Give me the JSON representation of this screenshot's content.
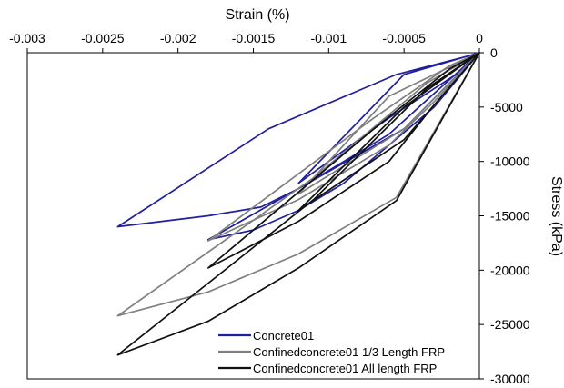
{
  "chart_data": {
    "type": "line",
    "title": "",
    "xlabel": "Strain (%)",
    "ylabel": "Stress (kPa)",
    "xlim": [
      -0.003,
      0
    ],
    "ylim": [
      -30000,
      0
    ],
    "x_ticks": [
      {
        "value": -0.003,
        "label": "-0.003"
      },
      {
        "value": -0.0025,
        "label": "-0.0025"
      },
      {
        "value": -0.002,
        "label": "-0.002"
      },
      {
        "value": -0.0015,
        "label": "-0.0015"
      },
      {
        "value": -0.001,
        "label": "-0.001"
      },
      {
        "value": -0.0005,
        "label": "-0.0005"
      },
      {
        "value": 0,
        "label": "0"
      }
    ],
    "y_ticks": [
      {
        "value": 0,
        "label": "0"
      },
      {
        "value": -5000,
        "label": "-5000"
      },
      {
        "value": -10000,
        "label": "-10000"
      },
      {
        "value": -15000,
        "label": "-15000"
      },
      {
        "value": -20000,
        "label": "-20000"
      },
      {
        "value": -25000,
        "label": "-25000"
      },
      {
        "value": -30000,
        "label": "-30000"
      }
    ],
    "x_axis_position": "top",
    "y_axis_position": "right",
    "grid": false,
    "legend_position": "bottom-right",
    "series": [
      {
        "name": "Concrete01",
        "color": "#1f1f9f",
        "x": [
          0,
          -0.0002,
          -0.0004,
          -0.0006,
          -0.0009,
          -0.0012,
          -0.00145,
          -0.0018,
          -0.0021,
          -0.0024,
          -0.0014,
          -0.00055,
          -0.0001,
          0,
          -0.0003,
          -0.0006,
          -0.0009,
          -0.0012,
          -0.0015,
          -0.0018,
          -0.0005,
          -5e-05,
          0,
          -0.0001,
          -0.0006,
          -0.0009,
          -0.0012,
          -0.0005,
          0
        ],
        "y": [
          0,
          -2500,
          -5000,
          -7500,
          -10000,
          -12500,
          -14200,
          -15000,
          -15500,
          -16000,
          -7000,
          -2000,
          -400,
          0,
          -5000,
          -8500,
          -12000,
          -14500,
          -16300,
          -17200,
          -7000,
          -700,
          0,
          -1500,
          -6000,
          -9000,
          -12000,
          -2000,
          0
        ]
      },
      {
        "name": "Confinedconcrete01 1/3 Length FRP",
        "color": "#7f7f7f",
        "x": [
          0,
          -0.00055,
          -0.0012,
          -0.0018,
          -0.0024,
          -0.0011,
          -0.00035,
          0,
          -0.0003,
          -0.0006,
          -0.0012,
          -0.0018,
          -0.0007,
          -0.0002,
          0,
          -0.0005,
          -0.0012,
          -0.0006,
          0
        ],
        "y": [
          0,
          -13300,
          -18500,
          -22000,
          -24200,
          -11500,
          -2800,
          0,
          -4500,
          -8500,
          -13500,
          -17300,
          -6000,
          -1200,
          0,
          -7000,
          -13000,
          -4000,
          0
        ]
      },
      {
        "name": "Confinedconcrete01 All length FRP",
        "color": "#111111",
        "x": [
          0,
          -0.00055,
          -0.0012,
          -0.0018,
          -0.0024,
          -0.0011,
          -0.00035,
          0,
          -0.0003,
          -0.0006,
          -0.0012,
          -0.0018,
          -0.0007,
          -0.0002,
          0,
          -0.0005,
          -0.0012,
          -0.0005,
          0
        ],
        "y": [
          0,
          -13600,
          -19800,
          -24700,
          -27800,
          -13500,
          -3300,
          0,
          -4800,
          -10000,
          -15500,
          -19800,
          -7000,
          -1500,
          0,
          -8000,
          -14500,
          -5000,
          0
        ]
      }
    ]
  }
}
